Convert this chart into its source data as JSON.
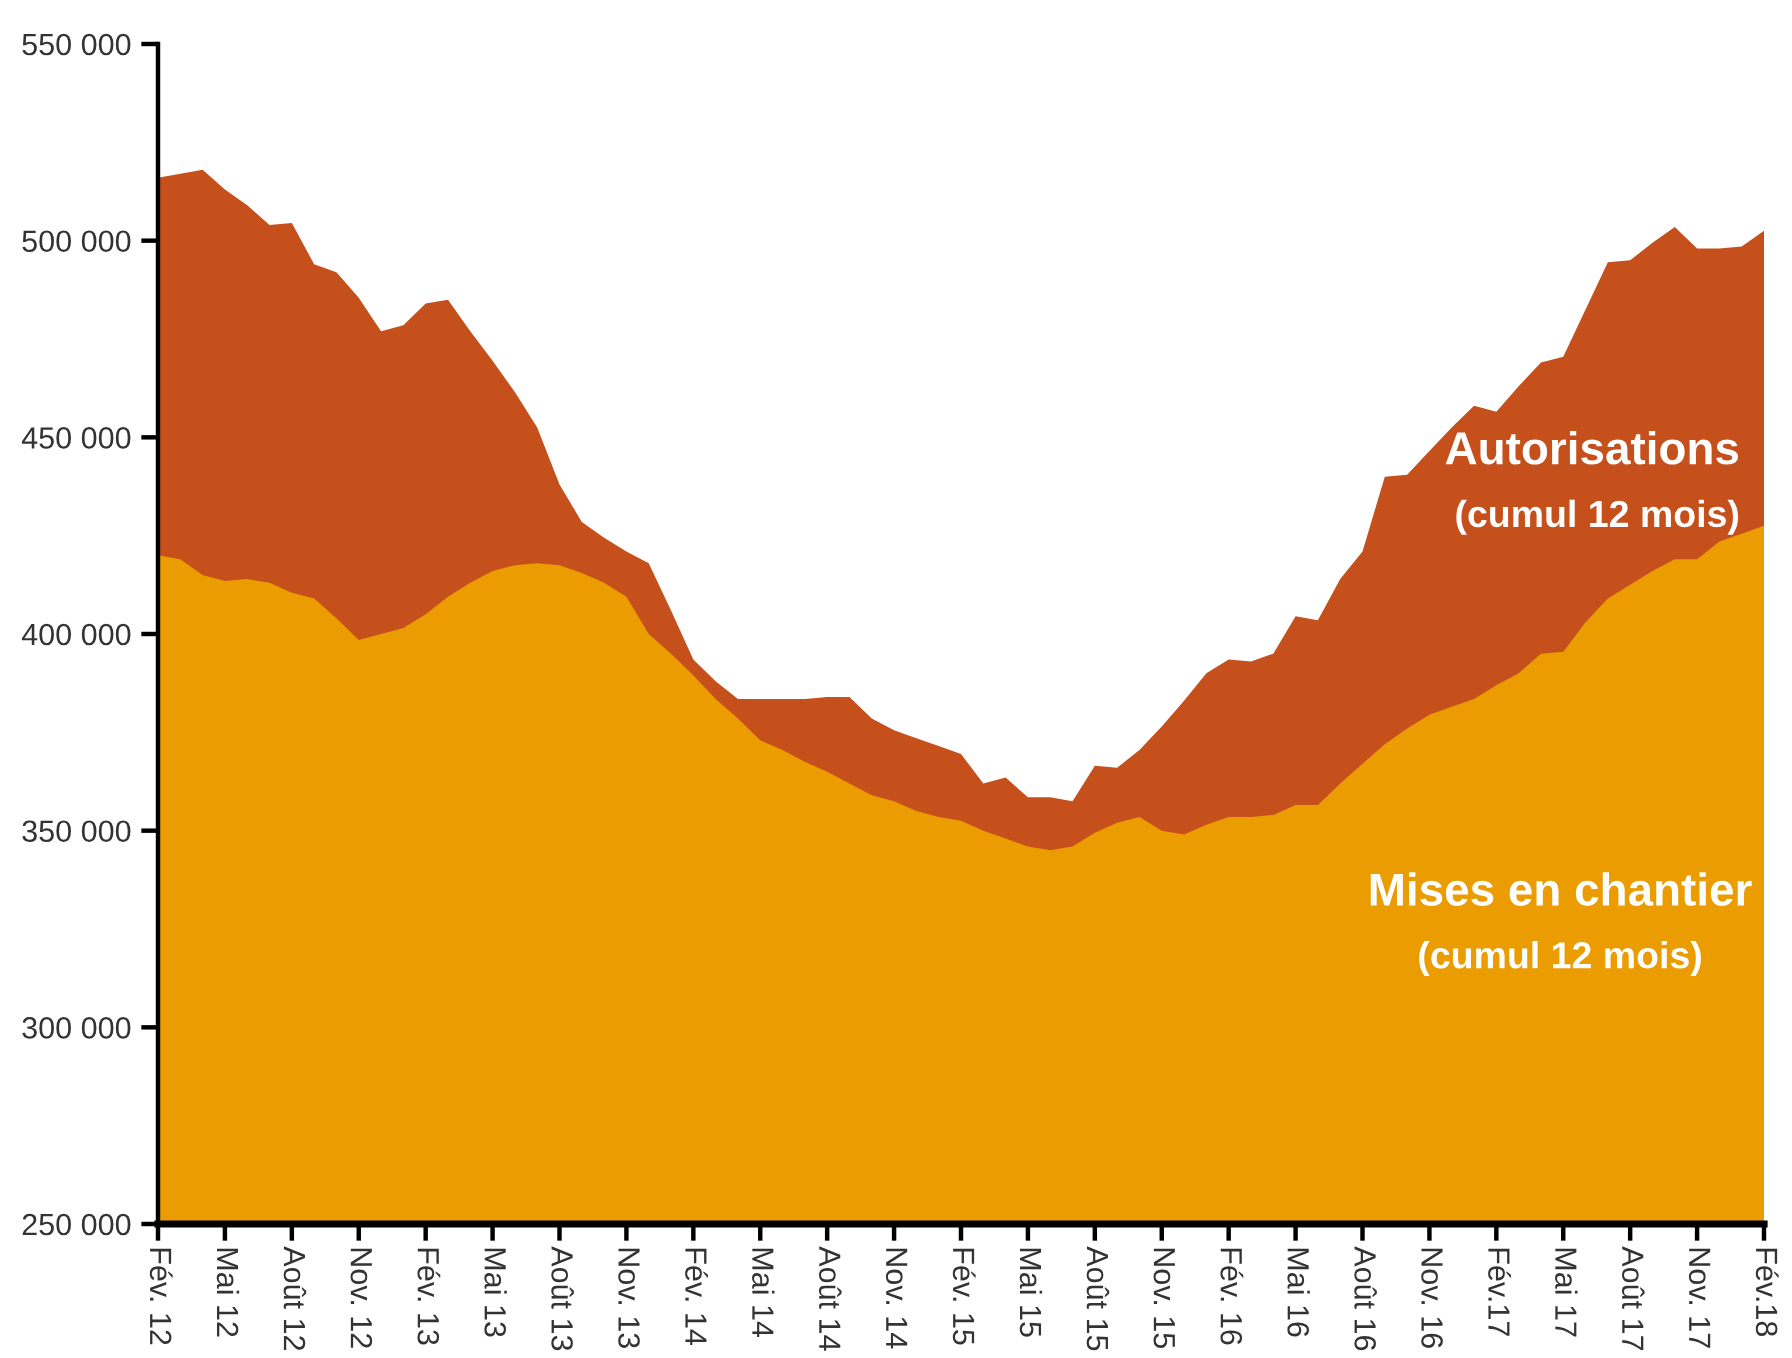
{
  "chart_data": {
    "type": "area",
    "categories": [
      "Fév. 12",
      null,
      null,
      "Mai 12",
      null,
      null,
      "Août 12",
      null,
      null,
      "Nov. 12",
      null,
      null,
      "Fév. 13",
      null,
      null,
      "Mai 13",
      null,
      null,
      "Août 13",
      null,
      null,
      "Nov. 13",
      null,
      null,
      "Fév. 14",
      null,
      null,
      "Mai 14",
      null,
      null,
      "Août 14",
      null,
      null,
      "Nov. 14",
      null,
      null,
      "Fév. 15",
      null,
      null,
      "Mai 15",
      null,
      null,
      "Août 15",
      null,
      null,
      "Nov. 15",
      null,
      null,
      "Fév. 16",
      null,
      null,
      "Mai 16",
      null,
      null,
      "Août 16",
      null,
      null,
      "Nov. 16",
      null,
      null,
      "Fév.17",
      null,
      null,
      "Mai 17",
      null,
      null,
      "Août 17",
      null,
      null,
      "Nov. 17",
      null,
      null,
      "Fév.18"
    ],
    "series": [
      {
        "name": "Autorisations\n(cumul 12 mois)",
        "color": "#c5501c",
        "values": [
          516000,
          517000,
          518000,
          513000,
          509000,
          504000,
          504500,
          494000,
          492000,
          485500,
          477000,
          478500,
          484000,
          485000,
          477000,
          469500,
          461500,
          452500,
          438000,
          428500,
          424500,
          421000,
          418000,
          406000,
          393500,
          388000,
          383500,
          383500,
          383500,
          383500,
          384000,
          384000,
          378500,
          375500,
          373500,
          371500,
          369500,
          362000,
          363500,
          358500,
          358500,
          357500,
          366500,
          366000,
          370500,
          376500,
          383000,
          390000,
          393500,
          393000,
          395000,
          404500,
          403500,
          414000,
          421000,
          440000,
          440500,
          446500,
          452500,
          458000,
          456500,
          463000,
          469000,
          470500,
          482500,
          494500,
          495000,
          499500,
          503500,
          498000,
          498000,
          498500,
          502500
        ]
      },
      {
        "name": "Mises en chantier\n(cumul 12 mois)",
        "color": "#ea9c00",
        "values": [
          420000,
          419000,
          415000,
          413500,
          414000,
          413000,
          410500,
          409000,
          404000,
          398500,
          400000,
          401500,
          405000,
          409500,
          413000,
          416000,
          417500,
          418000,
          417500,
          415500,
          413000,
          409500,
          400000,
          395000,
          389500,
          383500,
          378500,
          373000,
          370500,
          367500,
          365000,
          362000,
          359000,
          357500,
          355000,
          353500,
          352500,
          350000,
          348000,
          346000,
          345000,
          346000,
          349500,
          352000,
          353500,
          350000,
          349000,
          351500,
          353500,
          353500,
          354000,
          356500,
          356500,
          362000,
          367000,
          372000,
          376000,
          379500,
          381500,
          383500,
          387000,
          390000,
          395000,
          395500,
          403000,
          409000,
          412500,
          416000,
          419000,
          419000,
          423500,
          425500,
          427500
        ]
      }
    ],
    "ylim": [
      250000,
      550000
    ],
    "yticks": [
      {
        "value": 250000,
        "label": "250 000"
      },
      {
        "value": 300000,
        "label": "300 000"
      },
      {
        "value": 350000,
        "label": "350 000"
      },
      {
        "value": 400000,
        "label": "400 000"
      },
      {
        "value": 450000,
        "label": "450 000"
      },
      {
        "value": 500000,
        "label": "500 000"
      },
      {
        "value": 550000,
        "label": "550 000"
      }
    ]
  }
}
